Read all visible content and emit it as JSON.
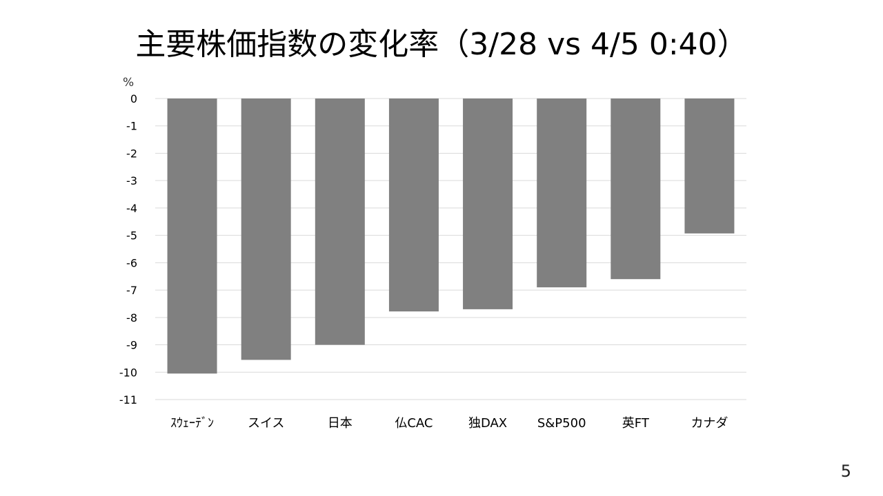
{
  "slide": {
    "title": "主要株価指数の変化率（3/28 vs 4/5 0:40）",
    "page_number": "5"
  },
  "chart_data": {
    "type": "bar",
    "title": "主要株価指数の変化率（3/28 vs 4/5 0:40）",
    "xlabel": "",
    "ylabel": "",
    "unit": "%",
    "categories": [
      "ｽｳｪｰﾃﾞﾝ",
      "スイス",
      "日本",
      "仏CAC",
      "独DAX",
      "S&P500",
      "英FT",
      "カナダ"
    ],
    "values": [
      -10.05,
      -9.55,
      -9.0,
      -7.78,
      -7.7,
      -6.9,
      -6.6,
      -4.93
    ],
    "ylim": [
      -11,
      0
    ],
    "yticks": [
      0,
      -1,
      -2,
      -3,
      -4,
      -5,
      -6,
      -7,
      -8,
      -9,
      -10,
      -11
    ],
    "grid": true,
    "legend": "none",
    "colors": {
      "bar": "#808080",
      "grid": "#d9d9d9",
      "axis": "#bfbfbf"
    }
  }
}
